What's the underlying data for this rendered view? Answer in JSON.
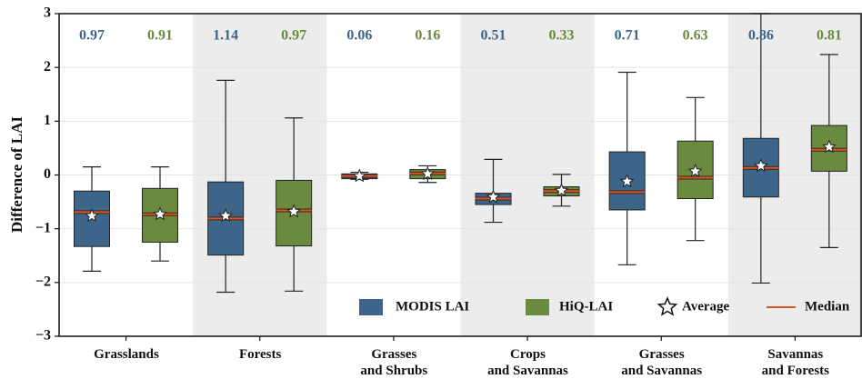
{
  "chart_data": {
    "type": "box",
    "ylabel": "Difference of LAI",
    "categories": [
      "Grasslands",
      "Forests",
      "Grasses\nand Shrubs",
      "Crops\nand Savannas",
      "Grasses\nand Savannas",
      "Savannas\nand Forests"
    ],
    "series": [
      {
        "name": "MODIS LAI",
        "color": "#3d6489",
        "scores": [
          0.97,
          1.14,
          0.06,
          0.51,
          0.71,
          0.86
        ],
        "whislo": [
          -1.79,
          -2.18,
          -0.08,
          -0.88,
          -1.67,
          -2.01
        ],
        "q1": [
          -1.33,
          -1.49,
          -0.07,
          -0.55,
          -0.65,
          -0.41
        ],
        "med": [
          -0.69,
          -0.81,
          -0.02,
          -0.44,
          -0.32,
          0.13
        ],
        "q3": [
          -0.3,
          -0.13,
          0.02,
          -0.34,
          0.43,
          0.68
        ],
        "whishi": [
          0.15,
          1.76,
          0.05,
          0.29,
          1.91,
          3.0
        ],
        "mean": [
          -0.76,
          -0.76,
          -0.02,
          -0.41,
          -0.12,
          0.17
        ]
      },
      {
        "name": "HiQ-LAI",
        "color": "#6a8a3f",
        "scores": [
          0.91,
          0.97,
          0.16,
          0.33,
          0.63,
          0.81
        ],
        "whislo": [
          -1.6,
          -2.16,
          -0.14,
          -0.58,
          -1.22,
          -1.35
        ],
        "q1": [
          -1.25,
          -1.32,
          -0.07,
          -0.39,
          -0.44,
          0.07
        ],
        "med": [
          -0.73,
          -0.66,
          0.03,
          -0.3,
          -0.05,
          0.47
        ],
        "q3": [
          -0.25,
          -0.1,
          0.1,
          -0.22,
          0.63,
          0.92
        ],
        "whishi": [
          0.15,
          1.06,
          0.17,
          0.01,
          1.44,
          2.24
        ],
        "mean": [
          -0.73,
          -0.68,
          0.02,
          -0.29,
          0.07,
          0.52
        ]
      }
    ],
    "average_label": "Average",
    "median_label": "Median",
    "median_color": "#d9542b",
    "ylim": [
      -3,
      3
    ],
    "yticks": [
      {
        "value": -3,
        "label": "−3"
      },
      {
        "value": -2,
        "label": "−2"
      },
      {
        "value": -1,
        "label": "−1"
      },
      0,
      1,
      2,
      3
    ],
    "grid": true
  }
}
